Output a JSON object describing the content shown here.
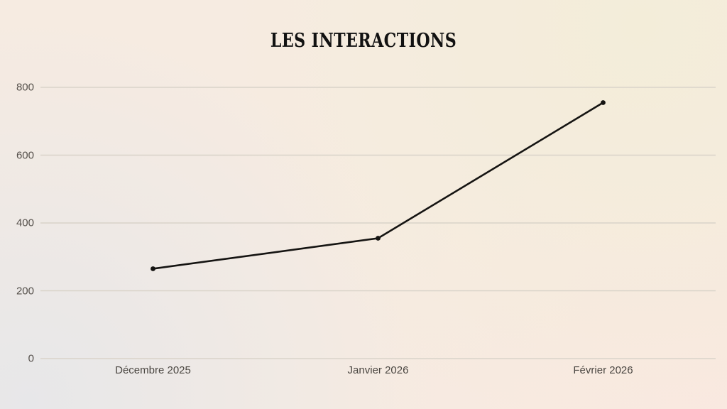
{
  "title": "LES INTERACTIONS",
  "chart_data": {
    "type": "line",
    "title": "LES INTERACTIONS",
    "categories": [
      "Décembre 2025",
      "Janvier 2026",
      "Février 2026"
    ],
    "series": [
      {
        "name": "Interactions",
        "values": [
          265,
          355,
          755
        ]
      }
    ],
    "xlabel": "",
    "ylabel": "",
    "ylim": [
      0,
      800
    ],
    "yticks": [
      0,
      200,
      400,
      600,
      800
    ],
    "grid": true,
    "legend": "none",
    "line_color": "#151412",
    "point_radius": 3.4,
    "line_width": 2.6,
    "gridline_color": "#d9d3c9",
    "tick_label_color": "#55504b"
  },
  "colors": {
    "background_base": "#f6ebe1",
    "background_top_right": "#f3edd9",
    "background_bottom_left": "#e7e7e9",
    "background_bottom_right": "#fae8e0",
    "title_color": "#121212"
  }
}
